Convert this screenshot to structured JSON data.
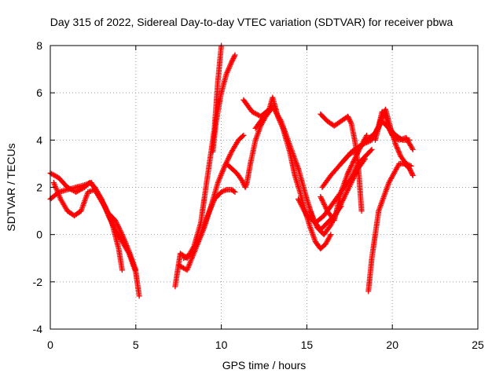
{
  "chart_data": {
    "type": "scatter",
    "title": "Day 315 of 2022, Sidereal Day-to-day VTEC variation (SDTVAR) for receiver pbwa",
    "xlabel": "GPS time / hours",
    "ylabel": "SDTVAR / TECUs",
    "xlim": [
      0,
      25
    ],
    "ylim": [
      -4,
      8
    ],
    "x_ticks": [
      "0",
      "5",
      "10",
      "15",
      "20",
      "25"
    ],
    "y_ticks": [
      "-4",
      "-2",
      "0",
      "2",
      "4",
      "6",
      "8"
    ],
    "grid": true,
    "legend": "none",
    "marker": "plus",
    "color": "#ff0000",
    "series": [
      {
        "x": [
          0.0,
          0.5,
          1.0,
          1.5,
          2.0,
          2.3,
          2.6,
          3.0,
          3.4,
          3.8,
          4.2,
          4.6,
          5.0,
          5.2
        ],
        "y": [
          2.6,
          2.4,
          2.0,
          1.8,
          2.0,
          2.2,
          2.0,
          1.5,
          0.8,
          0.2,
          -0.3,
          -0.8,
          -1.6,
          -2.6
        ]
      },
      {
        "x": [
          0.0,
          0.5,
          1.0,
          1.5,
          2.0,
          2.4,
          2.8,
          3.2,
          3.6,
          4.0,
          4.2
        ],
        "y": [
          1.5,
          1.8,
          1.9,
          2.0,
          2.1,
          2.2,
          1.7,
          1.2,
          0.5,
          -0.6,
          -1.5
        ]
      },
      {
        "x": [
          0.2,
          0.6,
          1.0,
          1.4,
          1.8,
          2.2,
          2.6,
          3.0,
          3.4,
          3.8,
          4.2,
          4.6,
          5.0
        ],
        "y": [
          2.2,
          1.5,
          1.0,
          0.8,
          1.0,
          1.8,
          1.9,
          1.4,
          0.9,
          0.6,
          0.0,
          -0.7,
          -1.5
        ]
      },
      {
        "x": [
          7.3,
          7.6,
          8.0,
          8.4,
          8.8,
          9.0,
          9.3,
          9.6,
          9.8,
          10.0
        ],
        "y": [
          -2.2,
          -0.8,
          -1.0,
          -0.5,
          0.5,
          1.5,
          3.0,
          4.5,
          6.5,
          8.0
        ]
      },
      {
        "x": [
          7.5,
          8.0,
          8.5,
          9.0,
          9.4,
          9.8,
          10.2,
          10.6,
          11.0,
          11.3
        ],
        "y": [
          -1.3,
          -1.5,
          -0.6,
          0.3,
          1.2,
          2.2,
          2.9,
          3.5,
          4.0,
          4.2
        ]
      },
      {
        "x": [
          7.8,
          8.3,
          8.8,
          9.2,
          9.6,
          10.0,
          10.3,
          10.6,
          10.8
        ],
        "y": [
          -1.0,
          -0.8,
          0.0,
          0.8,
          1.5,
          1.8,
          1.9,
          1.9,
          1.8
        ]
      },
      {
        "x": [
          9.5,
          9.7,
          10.0,
          10.3,
          10.6,
          10.8
        ],
        "y": [
          3.5,
          4.8,
          6.0,
          6.8,
          7.3,
          7.6
        ]
      },
      {
        "x": [
          10.3,
          10.6,
          10.9,
          11.2,
          11.4,
          11.5,
          11.7,
          12.0,
          12.3,
          12.6,
          12.8,
          13.0,
          13.2
        ],
        "y": [
          3.0,
          2.8,
          2.6,
          2.3,
          2.0,
          2.2,
          3.0,
          4.0,
          4.6,
          5.0,
          5.2,
          5.4,
          5.3
        ]
      },
      {
        "x": [
          11.3,
          11.8,
          12.3,
          12.8,
          13.0,
          13.3,
          13.6,
          14.0,
          14.3,
          14.6,
          14.9,
          15.2,
          15.5,
          15.8,
          16.1,
          16.4
        ],
        "y": [
          5.7,
          5.2,
          5.0,
          5.3,
          5.8,
          5.0,
          4.5,
          3.5,
          2.5,
          1.8,
          1.0,
          0.3,
          -0.3,
          -0.6,
          -0.4,
          0.0
        ]
      },
      {
        "x": [
          12.0,
          12.5,
          13.0,
          13.5,
          14.0,
          14.5,
          15.0,
          15.4,
          15.8,
          16.2,
          16.6,
          17.0
        ],
        "y": [
          4.5,
          5.0,
          5.4,
          4.8,
          3.8,
          2.8,
          1.5,
          0.6,
          0.2,
          0.5,
          0.8,
          1.2
        ]
      },
      {
        "x": [
          14.5,
          15.0,
          15.5,
          16.0,
          16.4,
          16.8,
          17.2,
          17.6,
          18.0,
          18.4,
          18.8
        ],
        "y": [
          1.5,
          0.8,
          0.5,
          0.8,
          1.2,
          1.6,
          2.0,
          2.4,
          3.0,
          3.3,
          3.6
        ]
      },
      {
        "x": [
          15.2,
          15.6,
          16.0,
          16.4,
          16.8,
          17.2,
          17.6,
          18.0,
          18.4
        ],
        "y": [
          1.0,
          0.3,
          0.0,
          0.4,
          1.0,
          1.6,
          2.2,
          2.8,
          3.2
        ]
      },
      {
        "x": [
          15.8,
          16.2,
          16.6,
          17.0,
          17.4,
          17.8,
          18.2,
          18.5
        ],
        "y": [
          1.6,
          1.0,
          0.6,
          1.8,
          2.6,
          3.2,
          3.8,
          4.2
        ]
      },
      {
        "x": [
          15.8,
          16.2,
          16.6,
          17.0,
          17.4,
          17.6,
          17.8,
          18.0,
          18.2
        ],
        "y": [
          5.1,
          4.8,
          4.6,
          4.8,
          5.0,
          4.7,
          4.0,
          3.0,
          1.0
        ]
      },
      {
        "x": [
          15.9,
          16.4,
          17.0,
          17.6,
          18.2,
          18.8,
          19.2,
          19.4,
          19.6,
          19.8,
          20.0,
          20.4,
          20.8,
          21.2
        ],
        "y": [
          2.0,
          2.5,
          3.0,
          3.5,
          3.8,
          4.0,
          4.6,
          5.2,
          5.0,
          4.5,
          4.2,
          4.0,
          4.1,
          3.6
        ]
      },
      {
        "x": [
          17.0,
          17.5,
          18.0,
          18.5,
          19.0,
          19.4,
          19.8,
          20.2,
          20.6,
          21.0
        ],
        "y": [
          3.0,
          3.4,
          3.6,
          4.0,
          4.3,
          4.8,
          4.5,
          4.2,
          4.0,
          4.0
        ]
      },
      {
        "x": [
          18.6,
          18.8,
          19.0,
          19.2,
          19.5,
          19.8,
          20.1,
          20.4,
          20.7,
          21.0,
          21.2
        ],
        "y": [
          -2.4,
          -1.0,
          0.0,
          1.0,
          1.6,
          2.2,
          2.6,
          3.0,
          3.0,
          2.8,
          2.5
        ]
      },
      {
        "x": [
          19.0,
          19.3,
          19.6,
          19.9,
          20.2,
          20.5,
          20.8,
          21.1
        ],
        "y": [
          4.0,
          4.8,
          5.3,
          4.5,
          3.8,
          3.3,
          3.0,
          2.9
        ]
      }
    ]
  }
}
